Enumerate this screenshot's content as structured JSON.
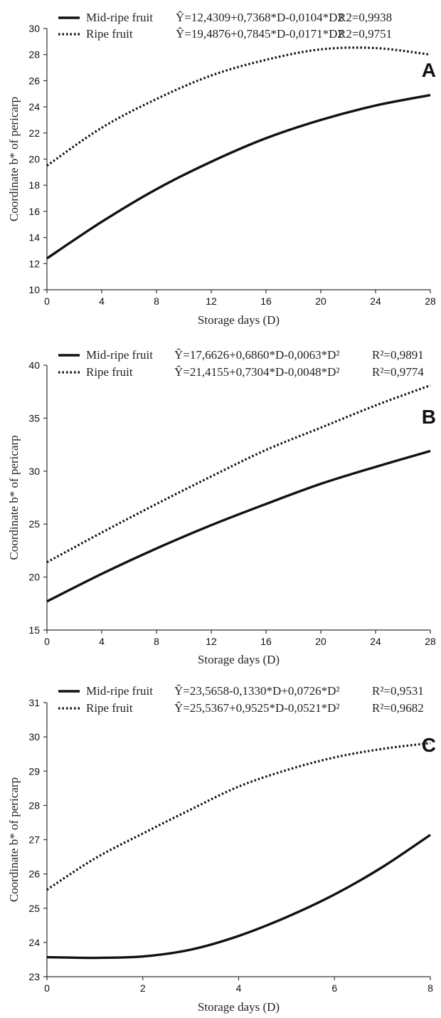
{
  "chart_data": [
    {
      "panel_label": "A",
      "type": "line",
      "xlabel": "Storage days (D)",
      "ylabel": "Coordinate b* of pericarp",
      "xlim": [
        0,
        28
      ],
      "ylim": [
        10,
        30
      ],
      "xticks": [
        "0",
        "4",
        "8",
        "12",
        "16",
        "20",
        "24",
        "28"
      ],
      "yticks": [
        "10",
        "12",
        "14",
        "16",
        "18",
        "20",
        "22",
        "24",
        "26",
        "28",
        "30"
      ],
      "x": [
        0,
        4,
        8,
        12,
        16,
        20,
        24,
        28
      ],
      "series": [
        {
          "name": "Mid-ripe fruit",
          "equation": "Ŷ=12,4309+0,7368*D-0,0104*D2",
          "r2": "R2=0,9938",
          "style": "solid",
          "values": [
            12.4,
            15.2,
            17.7,
            19.8,
            21.6,
            23.0,
            24.1,
            24.9
          ]
        },
        {
          "name": "Ripe fruit",
          "equation": "Ŷ=19,4876+0,7845*D-0,0171*D2",
          "r2": "R2=0,9751",
          "style": "dotted",
          "values": [
            19.5,
            22.4,
            24.6,
            26.4,
            27.6,
            28.4,
            28.5,
            28.0
          ]
        }
      ],
      "legend_position": "top-left"
    },
    {
      "panel_label": "B",
      "type": "line",
      "xlabel": "Storage days (D)",
      "ylabel": "Coordinate b* of pericarp",
      "xlim": [
        0,
        28
      ],
      "ylim": [
        15,
        40
      ],
      "xticks": [
        "0",
        "4",
        "8",
        "12",
        "16",
        "20",
        "24",
        "28"
      ],
      "yticks": [
        "15",
        "20",
        "25",
        "30",
        "35",
        "40"
      ],
      "x": [
        0,
        4,
        8,
        12,
        16,
        20,
        24,
        28
      ],
      "series": [
        {
          "name": "Mid-ripe fruit",
          "equation": "Ŷ=17,6626+0,6860*D-0,0063*D²",
          "r2": "R²=0,9891",
          "style": "solid",
          "values": [
            17.7,
            20.3,
            22.7,
            24.9,
            26.9,
            28.8,
            30.4,
            31.9
          ]
        },
        {
          "name": "Ripe fruit",
          "equation": "Ŷ=21,4155+0,7304*D-0,0048*D²",
          "r2": "R²=0,9774",
          "style": "dotted",
          "values": [
            21.4,
            24.2,
            26.9,
            29.5,
            32.0,
            34.1,
            36.2,
            38.1
          ]
        }
      ],
      "legend_position": "top-left"
    },
    {
      "panel_label": "C",
      "type": "line",
      "xlabel": "Storage days (D)",
      "ylabel": "Coordinate b* of pericarp",
      "xlim": [
        0,
        8
      ],
      "ylim": [
        23,
        31
      ],
      "xticks": [
        "0",
        "2",
        "4",
        "6",
        "8"
      ],
      "yticks": [
        "23",
        "24",
        "25",
        "26",
        "27",
        "28",
        "29",
        "30",
        "31"
      ],
      "x": [
        0,
        1,
        2,
        3,
        4,
        5,
        6,
        7,
        8
      ],
      "series": [
        {
          "name": "Mid-ripe fruit",
          "equation": "Ŷ=23,5658-0,1330*D+0,0726*D²",
          "r2": "R²=0,9531",
          "style": "solid",
          "values": [
            23.57,
            23.55,
            23.59,
            23.79,
            24.19,
            24.74,
            25.4,
            26.2,
            27.14
          ]
        },
        {
          "name": "Ripe fruit",
          "equation": "Ŷ=25,5367+0,9525*D-0,0521*D²",
          "r2": "R²=0,9682",
          "style": "dotted",
          "values": [
            25.54,
            26.45,
            27.18,
            27.88,
            28.55,
            29.03,
            29.4,
            29.65,
            29.82
          ]
        }
      ],
      "legend_position": "top-left"
    }
  ]
}
